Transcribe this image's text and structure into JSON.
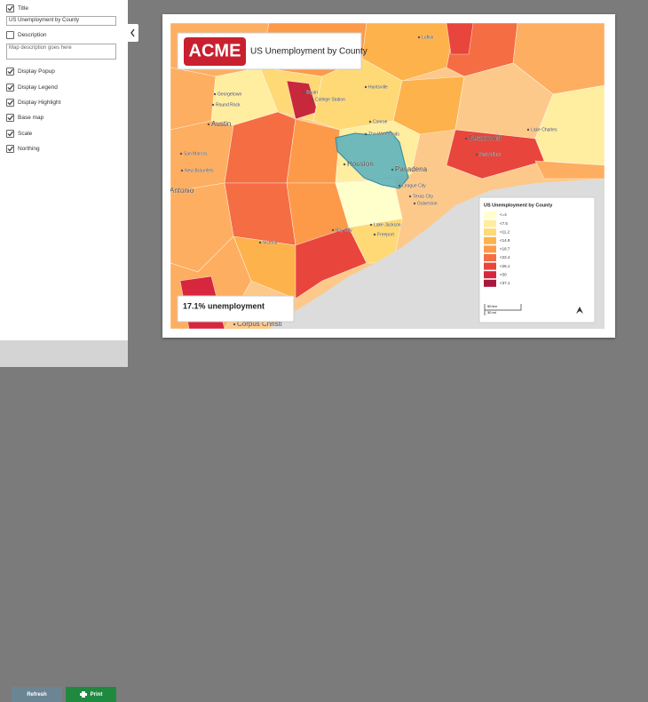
{
  "sidebar": {
    "options": [
      {
        "label": "Title",
        "checked": true,
        "input": "US Unemployment by County"
      },
      {
        "label": "Description",
        "checked": false,
        "placeholder": "Map description goes here"
      },
      {
        "label": "Display Popup",
        "checked": true
      },
      {
        "label": "Display Legend",
        "checked": true
      },
      {
        "label": "Display Highlight",
        "checked": true
      },
      {
        "label": "Base map",
        "checked": true
      },
      {
        "label": "Scale",
        "checked": true
      },
      {
        "label": "Northing",
        "checked": true
      }
    ],
    "buttons": {
      "refresh": "Refresh",
      "print": "Print"
    }
  },
  "map": {
    "logo": "ACME",
    "title": "US Unemployment by County",
    "info": "17.1% unemployment",
    "labels": [
      "Lufkin",
      "Bryan",
      "College Station",
      "Huntsville",
      "Georgetown",
      "Round Rock",
      "Austin",
      "Conroe",
      "The Woodlands",
      "Beaumont",
      "Lake Charles",
      "Port Arthur",
      "San Marcos",
      "New Braunfels",
      "Houston",
      "Pasadena",
      "League City",
      "Texas City",
      "Galveston",
      "San Antonio",
      "Victoria",
      "Bay City",
      "Lake Jackson",
      "Freeport",
      "Corpus Christi"
    ],
    "legend": {
      "title": "US Unemployment by County",
      "items": [
        {
          "label": "<=4",
          "color": "#ffffcc"
        },
        {
          "label": "<7.5",
          "color": "#ffeda0"
        },
        {
          "label": "<11.2",
          "color": "#fed976"
        },
        {
          "label": "<14.9",
          "color": "#feb24c"
        },
        {
          "label": "<18.7",
          "color": "#fd9a4a"
        },
        {
          "label": "<22.4",
          "color": "#f46d43"
        },
        {
          "label": "<26.1",
          "color": "#e8453c"
        },
        {
          "label": "<30",
          "color": "#d7263d"
        },
        {
          "label": "<37.1",
          "color": "#a8183e"
        }
      ]
    },
    "scale": {
      "km": "50 km",
      "mi": "30 mi"
    }
  }
}
